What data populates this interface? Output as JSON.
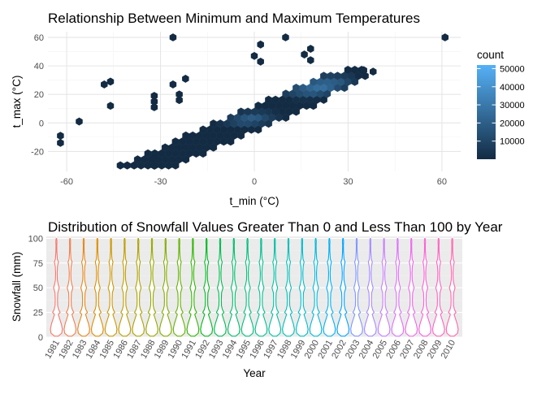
{
  "chart_data": [
    {
      "type": "hexbin",
      "title": "Relationship Between Minimum and Maximum Temperatures",
      "xlabel": "t_min (°C)",
      "ylabel": "t_max (°C)",
      "xlim": [
        -66,
        66
      ],
      "ylim": [
        -34,
        64
      ],
      "x_ticks": [
        -60,
        -30,
        0,
        30,
        60
      ],
      "x_tick_labels": [
        "-60",
        "-30",
        "0",
        "30",
        "60"
      ],
      "y_ticks": [
        -20,
        0,
        20,
        40,
        60
      ],
      "y_tick_labels": [
        "-20",
        "0",
        "20",
        "40",
        "60"
      ],
      "grid": true,
      "legend": {
        "title": "count",
        "position": "right",
        "range": [
          0,
          52000
        ],
        "ticks": [
          10000,
          20000,
          30000,
          40000,
          50000
        ],
        "tick_labels": [
          "10000",
          "20000",
          "30000",
          "40000",
          "50000"
        ],
        "color_low": "#132B43",
        "color_high": "#56B1F7"
      },
      "outliers": [
        {
          "x": -26,
          "y": 60
        },
        {
          "x": 2,
          "y": 55
        },
        {
          "x": 10,
          "y": 60
        },
        {
          "x": 61,
          "y": 60
        },
        {
          "x": -62,
          "y": -9
        },
        {
          "x": -62,
          "y": -14
        },
        {
          "x": -56,
          "y": 1
        },
        {
          "x": -48,
          "y": 27
        },
        {
          "x": -46,
          "y": 29
        },
        {
          "x": -46,
          "y": 12
        },
        {
          "x": -32,
          "y": -30
        },
        {
          "x": -32,
          "y": -25
        },
        {
          "x": -32,
          "y": 19
        },
        {
          "x": -32,
          "y": 15
        },
        {
          "x": -32,
          "y": 11
        },
        {
          "x": -26,
          "y": 27
        },
        {
          "x": -24,
          "y": 20
        },
        {
          "x": -24,
          "y": 16
        },
        {
          "x": -22,
          "y": 31
        },
        {
          "x": 0,
          "y": 47
        },
        {
          "x": 2,
          "y": 43
        },
        {
          "x": 16,
          "y": 48
        },
        {
          "x": 18,
          "y": 44
        },
        {
          "x": 18,
          "y": 52
        },
        {
          "x": 35,
          "y": 37
        },
        {
          "x": 38,
          "y": 36
        }
      ],
      "density": {
        "t_max_center": [
          3.0,
          0.95
        ],
        "core_x_range": [
          -44,
          36
        ],
        "band_width": 7.5,
        "peak": [
          17,
          27
        ]
      }
    },
    {
      "type": "violin",
      "title": "Distribution of Snowfall Values Greater Than 0 and Less Than 100 by Year",
      "xlabel": "Year",
      "ylabel": "Snowfall (mm)",
      "ylim": [
        0,
        102
      ],
      "y_ticks": [
        0,
        25,
        50,
        75,
        100
      ],
      "y_tick_labels": [
        "0",
        "25",
        "50",
        "75",
        "100"
      ],
      "categories": [
        "1981",
        "1982",
        "1983",
        "1984",
        "1985",
        "1986",
        "1987",
        "1988",
        "1989",
        "1990",
        "1991",
        "1992",
        "1993",
        "1994",
        "1995",
        "1996",
        "1997",
        "1998",
        "1999",
        "2000",
        "2001",
        "2002",
        "2003",
        "2004",
        "2005",
        "2006",
        "2007",
        "2008",
        "2009",
        "2010"
      ],
      "violin_range": [
        1,
        100
      ],
      "density_profile": [
        {
          "y": 1,
          "width": 0.3
        },
        {
          "y": 4,
          "width": 0.85
        },
        {
          "y": 8,
          "width": 0.95
        },
        {
          "y": 13,
          "width": 0.8
        },
        {
          "y": 18,
          "width": 0.55
        },
        {
          "y": 23,
          "width": 0.3
        },
        {
          "y": 25,
          "width": 0.6
        },
        {
          "y": 28,
          "width": 0.35
        },
        {
          "y": 32,
          "width": 0.2
        },
        {
          "y": 38,
          "width": 0.18
        },
        {
          "y": 45,
          "width": 0.22
        },
        {
          "y": 50,
          "width": 0.45
        },
        {
          "y": 53,
          "width": 0.3
        },
        {
          "y": 58,
          "width": 0.15
        },
        {
          "y": 65,
          "width": 0.12
        },
        {
          "y": 72,
          "width": 0.18
        },
        {
          "y": 76,
          "width": 0.32
        },
        {
          "y": 79,
          "width": 0.15
        },
        {
          "y": 86,
          "width": 0.08
        },
        {
          "y": 93,
          "width": 0.06
        },
        {
          "y": 97,
          "width": 0.09
        },
        {
          "y": 100,
          "width": 0.03
        }
      ],
      "colors": [
        "#F8766D",
        "#F17E4E",
        "#E7861B",
        "#DB8E00",
        "#CD9600",
        "#BE9C00",
        "#AEA200",
        "#9AA800",
        "#83AD00",
        "#64B200",
        "#2FB600",
        "#00B81F",
        "#00BB4E",
        "#00BD6A",
        "#00BF7D",
        "#00C08E",
        "#00C0A3",
        "#00BFB8",
        "#00BCCB",
        "#00B8DD",
        "#00B0F6",
        "#00A5FF",
        "#7F96FF",
        "#A58AFF",
        "#C77CFF",
        "#DE70F9",
        "#EE67EC",
        "#FB61D7",
        "#FF62C1",
        "#FF65AE"
      ],
      "panel_background": "#EBEBEB"
    }
  ]
}
